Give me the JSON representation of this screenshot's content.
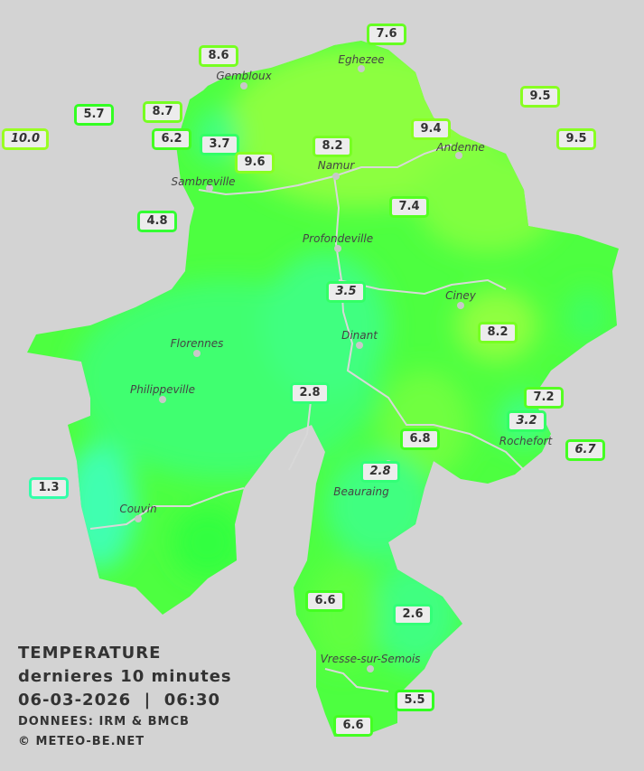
{
  "legend": {
    "title": "TEMPERATURE",
    "subtitle": "dernieres 10 minutes",
    "datetime": "06-03-2026  |  06:30",
    "source": "DONNEES: IRM & BMCB",
    "copyright": "© METEO-BE.NET"
  },
  "colors": {
    "background": "#d3d3d3",
    "warm": "#8cff40",
    "mid": "#4dff40",
    "cool": "#3dff85",
    "river": "#d8d8d8"
  },
  "cities": [
    "Eghezee",
    "Gembloux",
    "Andenne",
    "Namur",
    "Sambreville",
    "Profondeville",
    "Ciney",
    "Dinant",
    "Florennes",
    "Philippeville",
    "Rochefort",
    "Beauraing",
    "Couvin",
    "Vresse-sur-Semois"
  ],
  "stations": [
    {
      "value": "7.6",
      "italic": false,
      "border": "#66ff22"
    },
    {
      "value": "8.6",
      "italic": false,
      "border": "#77ff22"
    },
    {
      "value": "9.5",
      "italic": false,
      "border": "#88ff22"
    },
    {
      "value": "5.7",
      "italic": false,
      "border": "#33ff22"
    },
    {
      "value": "8.7",
      "italic": false,
      "border": "#77ff22"
    },
    {
      "value": "9.4",
      "italic": false,
      "border": "#88ff22"
    },
    {
      "value": "10.0",
      "italic": true,
      "border": "#99ff22"
    },
    {
      "value": "6.2",
      "italic": false,
      "border": "#44ff22"
    },
    {
      "value": "3.7",
      "italic": false,
      "border": "#33ff66"
    },
    {
      "value": "8.2",
      "italic": false,
      "border": "#77ff22"
    },
    {
      "value": "9.5",
      "italic": false,
      "border": "#88ff22"
    },
    {
      "value": "9.6",
      "italic": false,
      "border": "#88ff22"
    },
    {
      "value": "7.4",
      "italic": false,
      "border": "#55ff22"
    },
    {
      "value": "4.8",
      "italic": false,
      "border": "#33ff33"
    },
    {
      "value": "3.5",
      "italic": true,
      "border": "#33ff66"
    },
    {
      "value": "8.2",
      "italic": false,
      "border": "#77ff22"
    },
    {
      "value": "2.8",
      "italic": false,
      "border": "#33ff77"
    },
    {
      "value": "7.2",
      "italic": false,
      "border": "#55ff22"
    },
    {
      "value": "3.2",
      "italic": true,
      "border": "#33ff66"
    },
    {
      "value": "6.8",
      "italic": false,
      "border": "#44ff22"
    },
    {
      "value": "6.7",
      "italic": true,
      "border": "#44ff22"
    },
    {
      "value": "2.8",
      "italic": true,
      "border": "#33ff77"
    },
    {
      "value": "1.3",
      "italic": false,
      "border": "#33ffaa"
    },
    {
      "value": "6.6",
      "italic": false,
      "border": "#44ff22"
    },
    {
      "value": "2.6",
      "italic": false,
      "border": "#33ff77"
    },
    {
      "value": "5.5",
      "italic": false,
      "border": "#33ff22"
    },
    {
      "value": "6.6",
      "italic": false,
      "border": "#44ff22"
    }
  ]
}
